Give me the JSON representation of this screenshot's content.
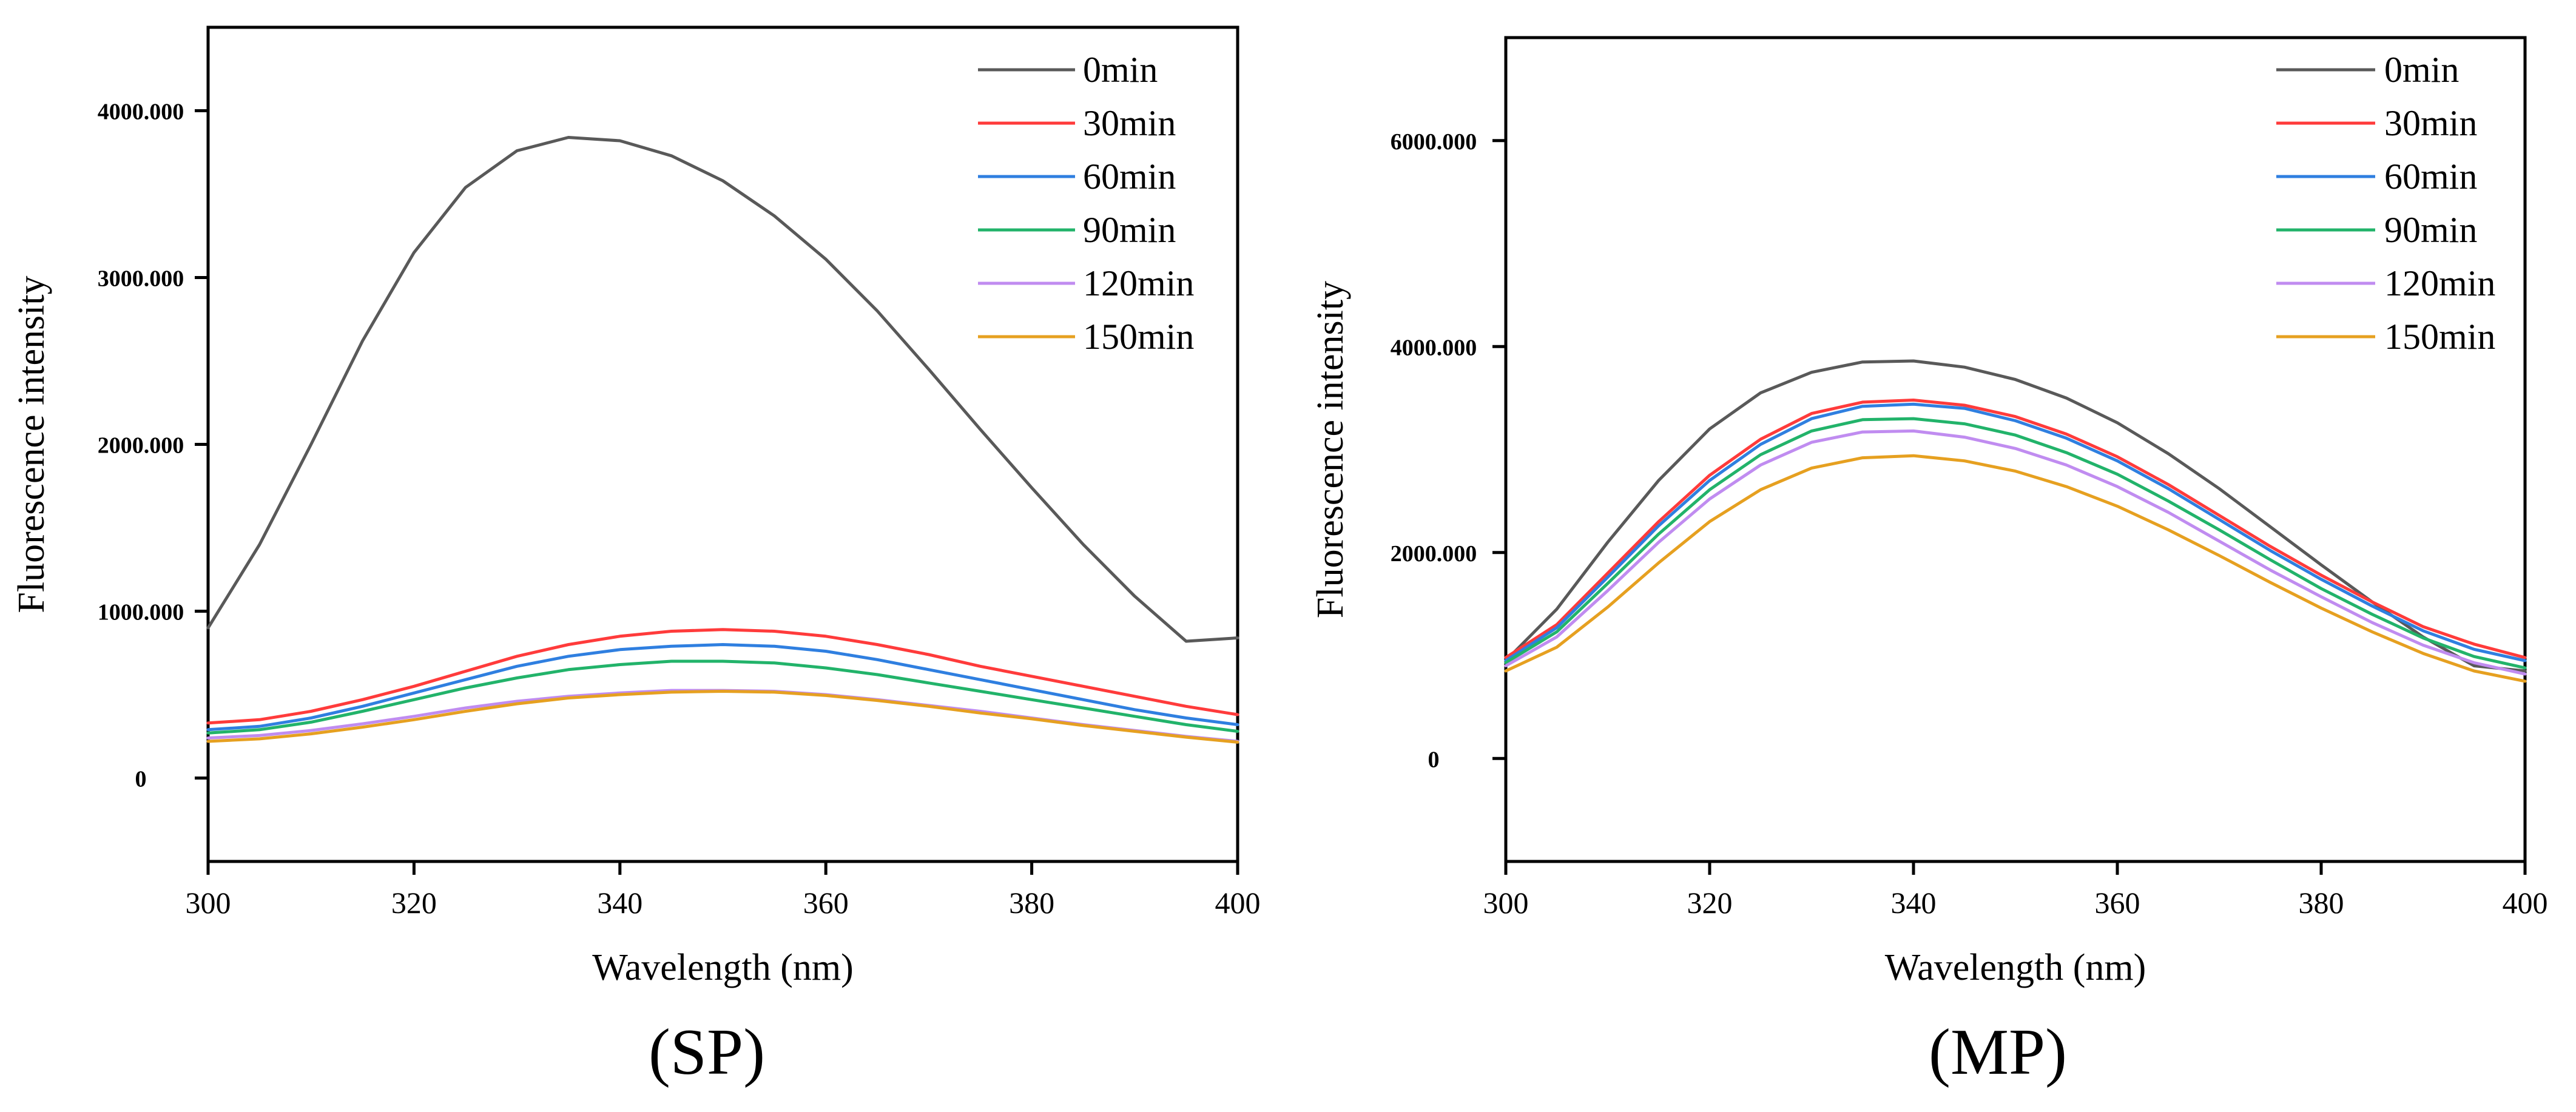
{
  "chart_data": [
    {
      "type": "line",
      "panel_label": "(SP)",
      "xlabel": "Wavelength (nm)",
      "ylabel": "Fluorescence intensity",
      "xlim": [
        300,
        400
      ],
      "ylim": [
        -500,
        4500
      ],
      "xticks": [
        300,
        320,
        340,
        360,
        380,
        400
      ],
      "xtick_labels": [
        "300",
        "320",
        "340",
        "360",
        "380",
        "400"
      ],
      "yticks": [
        0,
        1000,
        2000,
        3000,
        4000
      ],
      "ytick_labels": [
        "0",
        "1000.000",
        "2000.000",
        "3000.000",
        "4000.000"
      ],
      "legend_position": "top-right",
      "grid": false,
      "x": [
        300,
        305,
        310,
        315,
        320,
        325,
        330,
        335,
        340,
        345,
        350,
        355,
        360,
        365,
        370,
        375,
        380,
        385,
        390,
        395,
        400
      ],
      "series": [
        {
          "name": "0min",
          "color": "#595959",
          "values": [
            900,
            1400,
            2000,
            2620,
            3150,
            3540,
            3760,
            3840,
            3820,
            3730,
            3580,
            3370,
            3110,
            2800,
            2450,
            2090,
            1740,
            1400,
            1090,
            820,
            840
          ]
        },
        {
          "name": "30min",
          "color": "#ff3b3b",
          "values": [
            330,
            350,
            400,
            470,
            550,
            640,
            730,
            800,
            850,
            880,
            890,
            880,
            850,
            800,
            740,
            670,
            610,
            550,
            490,
            430,
            380
          ]
        },
        {
          "name": "60min",
          "color": "#2f7fe0",
          "values": [
            290,
            310,
            360,
            430,
            510,
            590,
            670,
            730,
            770,
            790,
            800,
            790,
            760,
            710,
            650,
            590,
            530,
            470,
            410,
            360,
            320
          ]
        },
        {
          "name": "90min",
          "color": "#22b36a",
          "values": [
            270,
            290,
            335,
            400,
            470,
            540,
            600,
            650,
            680,
            700,
            700,
            690,
            660,
            620,
            570,
            520,
            470,
            420,
            370,
            320,
            280
          ]
        },
        {
          "name": "120min",
          "color": "#c08cf0",
          "values": [
            240,
            255,
            285,
            325,
            370,
            420,
            460,
            490,
            510,
            525,
            525,
            520,
            500,
            470,
            435,
            400,
            360,
            320,
            285,
            250,
            220
          ]
        },
        {
          "name": "150min",
          "color": "#e6a020",
          "values": [
            220,
            235,
            265,
            305,
            350,
            400,
            445,
            480,
            500,
            515,
            520,
            515,
            495,
            465,
            430,
            390,
            355,
            315,
            280,
            245,
            215
          ]
        }
      ]
    },
    {
      "type": "line",
      "panel_label": "(MP)",
      "xlabel": "Wavelength (nm)",
      "ylabel": "Fluorescence intensity",
      "xlim": [
        300,
        400
      ],
      "ylim": [
        -1000,
        7000
      ],
      "xticks": [
        300,
        320,
        340,
        360,
        380,
        400
      ],
      "xtick_labels": [
        "300",
        "320",
        "340",
        "360",
        "380",
        "400"
      ],
      "yticks": [
        0,
        2000,
        4000,
        6000
      ],
      "ytick_labels": [
        "0",
        "2000.000",
        "4000.000",
        "6000.000"
      ],
      "legend_position": "top-right",
      "grid": false,
      "x": [
        300,
        305,
        310,
        315,
        320,
        325,
        330,
        335,
        340,
        345,
        350,
        355,
        360,
        365,
        370,
        375,
        380,
        385,
        390,
        395,
        400
      ],
      "series": [
        {
          "name": "0min",
          "color": "#595959",
          "values": [
            950,
            1450,
            2100,
            2700,
            3200,
            3550,
            3750,
            3850,
            3860,
            3800,
            3680,
            3500,
            3260,
            2960,
            2620,
            2250,
            1880,
            1520,
            1180,
            900,
            850
          ]
        },
        {
          "name": "30min",
          "color": "#ff3b3b",
          "values": [
            980,
            1300,
            1800,
            2300,
            2750,
            3100,
            3350,
            3460,
            3480,
            3430,
            3320,
            3150,
            2930,
            2660,
            2360,
            2060,
            1780,
            1520,
            1280,
            1110,
            980
          ]
        },
        {
          "name": "60min",
          "color": "#2f7fe0",
          "values": [
            950,
            1270,
            1760,
            2260,
            2700,
            3050,
            3300,
            3420,
            3440,
            3400,
            3280,
            3110,
            2890,
            2620,
            2320,
            2020,
            1740,
            1480,
            1240,
            1060,
            950
          ]
        },
        {
          "name": "90min",
          "color": "#22b36a",
          "values": [
            930,
            1230,
            1700,
            2180,
            2610,
            2950,
            3180,
            3290,
            3300,
            3250,
            3140,
            2970,
            2760,
            2500,
            2220,
            1930,
            1650,
            1400,
            1170,
            990,
            880
          ]
        },
        {
          "name": "120min",
          "color": "#c08cf0",
          "values": [
            900,
            1180,
            1630,
            2100,
            2520,
            2850,
            3070,
            3170,
            3180,
            3120,
            3010,
            2850,
            2640,
            2390,
            2110,
            1830,
            1570,
            1320,
            1100,
            930,
            820
          ]
        },
        {
          "name": "150min",
          "color": "#e6a020",
          "values": [
            850,
            1080,
            1470,
            1900,
            2300,
            2610,
            2820,
            2920,
            2940,
            2890,
            2790,
            2640,
            2450,
            2220,
            1970,
            1710,
            1460,
            1230,
            1020,
            850,
            750
          ]
        }
      ]
    }
  ]
}
